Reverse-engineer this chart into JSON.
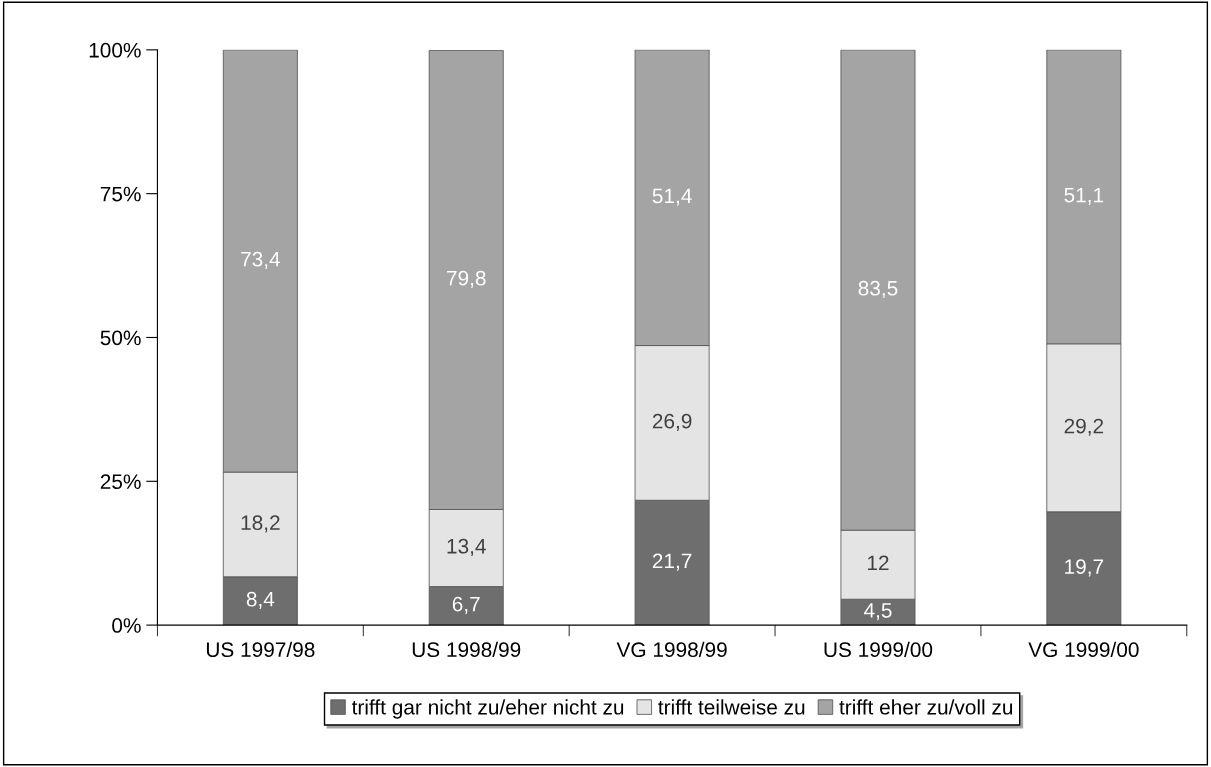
{
  "chart_data": {
    "type": "bar",
    "stacked": true,
    "categories": [
      "US 1997/98",
      "US 1998/99",
      "VG 1998/99",
      "US 1999/00",
      "VG 1999/00"
    ],
    "series": [
      {
        "name": "trifft gar nicht zu/eher nicht zu",
        "color": "#6e6e6e",
        "values": [
          8.4,
          6.7,
          21.7,
          4.5,
          19.7
        ],
        "value_labels": [
          "8,4",
          "6,7",
          "21,7",
          "4,5",
          "19,7"
        ]
      },
      {
        "name": "trifft teilweise zu",
        "color": "#e4e4e4",
        "values": [
          18.2,
          13.4,
          26.9,
          12,
          29.2
        ],
        "value_labels": [
          "18,2",
          "13,4",
          "26,9",
          "12",
          "29,2"
        ]
      },
      {
        "name": "trifft eher zu/voll zu",
        "color": "#a4a4a4",
        "values": [
          73.4,
          79.8,
          51.4,
          83.5,
          51.1
        ],
        "value_labels": [
          "73,4",
          "79,8",
          "51,4",
          "83,5",
          "51,1"
        ]
      }
    ],
    "ylim": [
      0,
      100
    ],
    "yticks": [
      {
        "value": 0,
        "label": "0%"
      },
      {
        "value": 25,
        "label": "25%"
      },
      {
        "value": 50,
        "label": "50%"
      },
      {
        "value": 75,
        "label": "75%"
      },
      {
        "value": 100,
        "label": "100%"
      }
    ],
    "grid": false,
    "legend": "bottom"
  }
}
